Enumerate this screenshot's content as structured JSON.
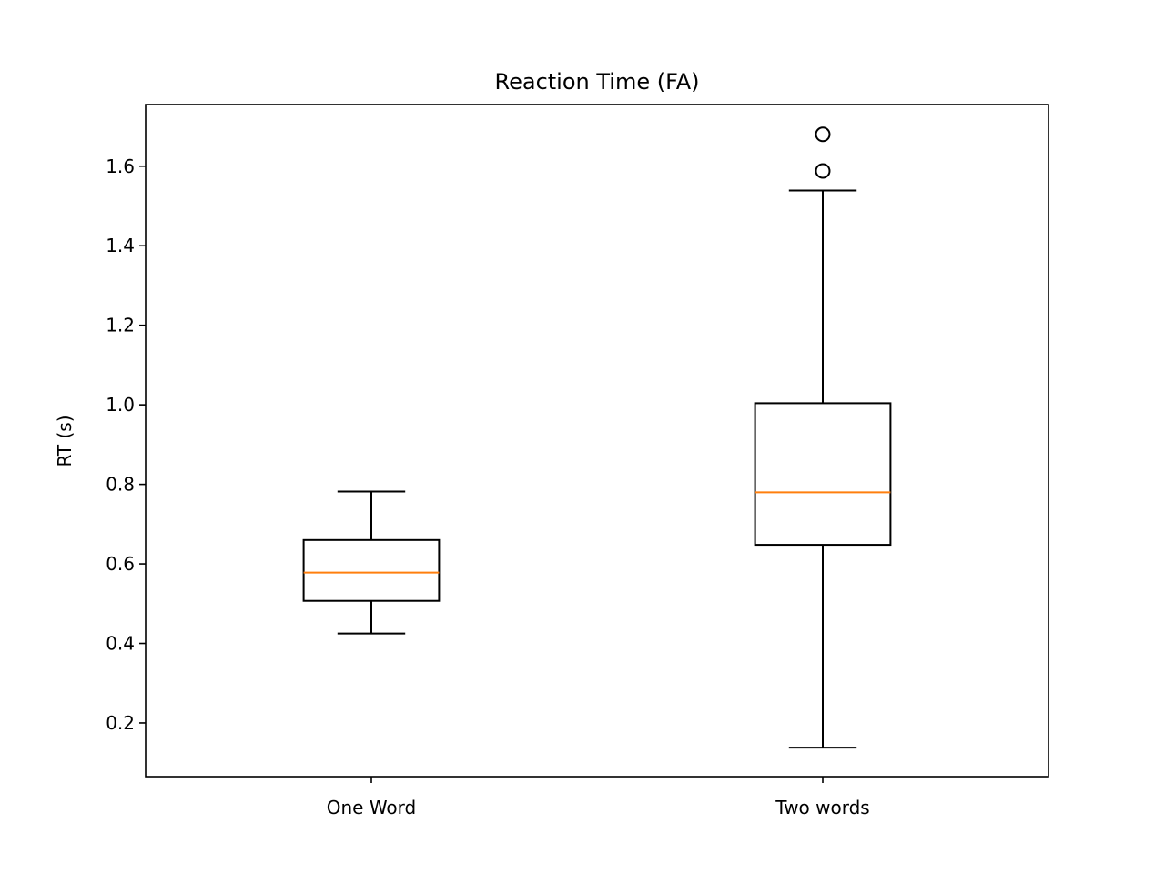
{
  "chart_data": {
    "type": "boxplot",
    "title": "Reaction Time (FA)",
    "xlabel": "",
    "ylabel": "RT (s)",
    "ylim": [
      0.065,
      1.755
    ],
    "yticks": [
      0.2,
      0.4,
      0.6,
      0.8,
      1.0,
      1.2,
      1.4,
      1.6
    ],
    "ytick_labels": [
      "0.2",
      "0.4",
      "0.6",
      "0.8",
      "1.0",
      "1.2",
      "1.4",
      "1.6"
    ],
    "categories": [
      "One Word",
      "Two words"
    ],
    "boxes": [
      {
        "category": "One Word",
        "whisker_low": 0.425,
        "q1": 0.507,
        "median": 0.578,
        "q3": 0.66,
        "whisker_high": 0.782,
        "outliers": []
      },
      {
        "category": "Two words",
        "whisker_low": 0.138,
        "q1": 0.648,
        "median": 0.78,
        "q3": 1.004,
        "whisker_high": 1.539,
        "outliers": [
          1.588,
          1.68
        ]
      }
    ],
    "grid": false,
    "colors": {
      "box": "#000000",
      "median": "#ff7f0e",
      "background": "#ffffff"
    }
  }
}
